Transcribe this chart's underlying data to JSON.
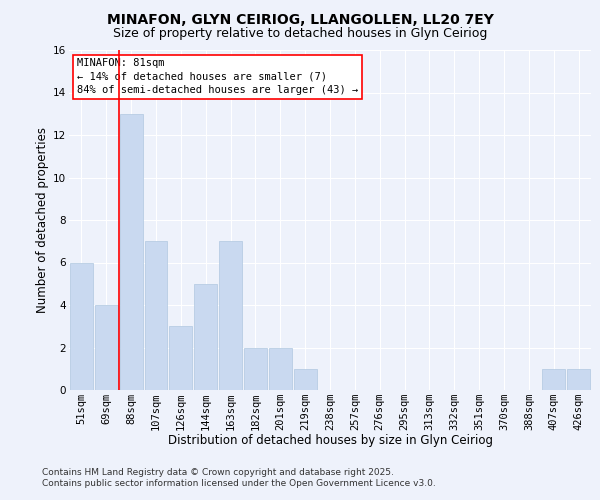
{
  "title": "MINAFON, GLYN CEIRIOG, LLANGOLLEN, LL20 7EY",
  "subtitle": "Size of property relative to detached houses in Glyn Ceiriog",
  "xlabel": "Distribution of detached houses by size in Glyn Ceiriog",
  "ylabel": "Number of detached properties",
  "categories": [
    "51sqm",
    "69sqm",
    "88sqm",
    "107sqm",
    "126sqm",
    "144sqm",
    "163sqm",
    "182sqm",
    "201sqm",
    "219sqm",
    "238sqm",
    "257sqm",
    "276sqm",
    "295sqm",
    "313sqm",
    "332sqm",
    "351sqm",
    "370sqm",
    "388sqm",
    "407sqm",
    "426sqm"
  ],
  "values": [
    6,
    4,
    13,
    7,
    3,
    5,
    7,
    2,
    2,
    1,
    0,
    0,
    0,
    0,
    0,
    0,
    0,
    0,
    0,
    1,
    1
  ],
  "bar_color": "#c9d9f0",
  "bar_edge_color": "#b0c8e0",
  "ylim": [
    0,
    16
  ],
  "yticks": [
    0,
    2,
    4,
    6,
    8,
    10,
    12,
    14,
    16
  ],
  "redline_x": 1.5,
  "annotation_title": "MINAFON: 81sqm",
  "annotation_line1": "← 14% of detached houses are smaller (7)",
  "annotation_line2": "84% of semi-detached houses are larger (43) →",
  "footer_line1": "Contains HM Land Registry data © Crown copyright and database right 2025.",
  "footer_line2": "Contains public sector information licensed under the Open Government Licence v3.0.",
  "bg_color": "#eef2fb",
  "grid_color": "#ffffff",
  "title_fontsize": 10,
  "subtitle_fontsize": 9,
  "axis_label_fontsize": 8.5,
  "tick_fontsize": 7.5,
  "annotation_fontsize": 7.5,
  "footer_fontsize": 6.5
}
